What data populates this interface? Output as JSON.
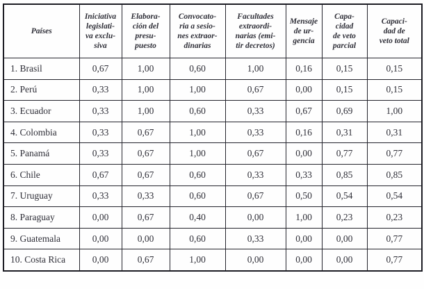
{
  "colors": {
    "text": "#2e2e37",
    "border": "#23232b",
    "background": "#fefefe"
  },
  "table": {
    "columns": [
      {
        "label": "Países"
      },
      {
        "label": "Iniciativa\nlegislati-\nva exclu-\nsiva"
      },
      {
        "label": "Elabora-\nción del\npresu-\npuesto"
      },
      {
        "label": "Convocato-\nria a sesio-\nnes extraor-\ndinarias"
      },
      {
        "label": "Facultades\nextraordi-\nnarias (emi-\ntir decretos)"
      },
      {
        "label": "Mensaje\nde ur-\ngencia"
      },
      {
        "label": "Capa-\ncidad\nde veto\nparcial"
      },
      {
        "label": "Capaci-\ndad de\nveto total"
      }
    ],
    "rows": [
      {
        "country": "1. Brasil",
        "values": [
          "0,67",
          "1,00",
          "0,60",
          "1,00",
          "0,16",
          "0,15",
          "0,15"
        ]
      },
      {
        "country": "2. Perú",
        "values": [
          "0,33",
          "1,00",
          "1,00",
          "0,67",
          "0,00",
          "0,15",
          "0,15"
        ]
      },
      {
        "country": "3. Ecuador",
        "values": [
          "0,33",
          "1,00",
          "0,60",
          "0,33",
          "0,67",
          "0,69",
          "1,00"
        ]
      },
      {
        "country": "4. Colombia",
        "values": [
          "0,33",
          "0,67",
          "1,00",
          "0,33",
          "0,16",
          "0,31",
          "0,31"
        ]
      },
      {
        "country": "5. Panamá",
        "values": [
          "0,33",
          "0,67",
          "1,00",
          "0,67",
          "0,00",
          "0,77",
          "0,77"
        ]
      },
      {
        "country": "6. Chile",
        "values": [
          "0,67",
          "0,67",
          "0,60",
          "0,33",
          "0,33",
          "0,85",
          "0,85"
        ]
      },
      {
        "country": "7. Uruguay",
        "values": [
          "0,33",
          "0,33",
          "0,60",
          "0,67",
          "0,50",
          "0,54",
          "0,54"
        ]
      },
      {
        "country": "8. Paraguay",
        "values": [
          "0,00",
          "0,67",
          "0,40",
          "0,00",
          "1,00",
          "0,23",
          "0,23"
        ]
      },
      {
        "country": "9. Guatemala",
        "values": [
          "0,00",
          "0,00",
          "0,60",
          "0,33",
          "0,00",
          "0,00",
          "0,77"
        ]
      },
      {
        "country": "10. Costa Rica",
        "values": [
          "0,00",
          "0,67",
          "1,00",
          "0,00",
          "0,00",
          "0,00",
          "0,77"
        ]
      }
    ]
  }
}
